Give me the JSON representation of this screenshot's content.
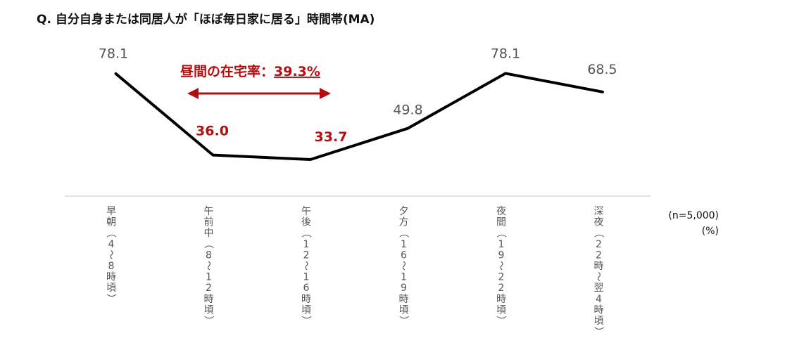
{
  "title": "Q. 自分自身または同居人が「ほぼ毎日家に居る」時間帯(MA)",
  "annotation": {
    "label": "昼間の在宅率：",
    "value": "39.3%",
    "color": "#b30f0f"
  },
  "sample_note": "(n=5,000)",
  "unit_note": "(%)",
  "chart_data": {
    "type": "line",
    "title": "Q. 自分自身または同居人が「ほぼ毎日家に居る」時間帯(MA)",
    "categories": [
      "早朝（4～8時頃）",
      "午前中（8～12時頃）",
      "午後（12～16時頃）",
      "夕方（16～19時頃）",
      "夜間（19～22時頃）",
      "深夜（22時～翌4時頃）"
    ],
    "category_labels": [
      [
        "早",
        "朝",
        "（",
        "4",
        "～",
        "8",
        "時",
        "頃",
        "）"
      ],
      [
        "午",
        "前",
        "中",
        "（",
        "8",
        "～",
        "1",
        "2",
        "時",
        "頃",
        "）"
      ],
      [
        "午",
        "後",
        "（",
        "1",
        "2",
        "～",
        "1",
        "6",
        "時",
        "頃",
        "）"
      ],
      [
        "夕",
        "方",
        "（",
        "1",
        "6",
        "～",
        "1",
        "9",
        "時",
        "頃",
        "）"
      ],
      [
        "夜",
        "間",
        "（",
        "1",
        "9",
        "～",
        "2",
        "2",
        "時",
        "頃",
        "）"
      ],
      [
        "深",
        "夜",
        "（",
        "2",
        "2",
        "時",
        "～",
        "翌",
        "4",
        "時",
        "頃",
        "）"
      ]
    ],
    "series": [
      {
        "values": [
          78.1,
          36.0,
          33.7,
          49.8,
          78.1,
          68.5
        ],
        "value_labels": [
          "78.1",
          "36.0",
          "33.7",
          "49.8",
          "78.1",
          "68.5"
        ],
        "highlight": [
          false,
          true,
          true,
          false,
          false,
          false
        ],
        "color": "#000000"
      }
    ],
    "highlight_color": "#b30f0f",
    "label_color": "#555555",
    "axis_color": "#d9d9d9",
    "ylim": [
      0,
      90
    ],
    "grid": false,
    "legend": "none"
  }
}
